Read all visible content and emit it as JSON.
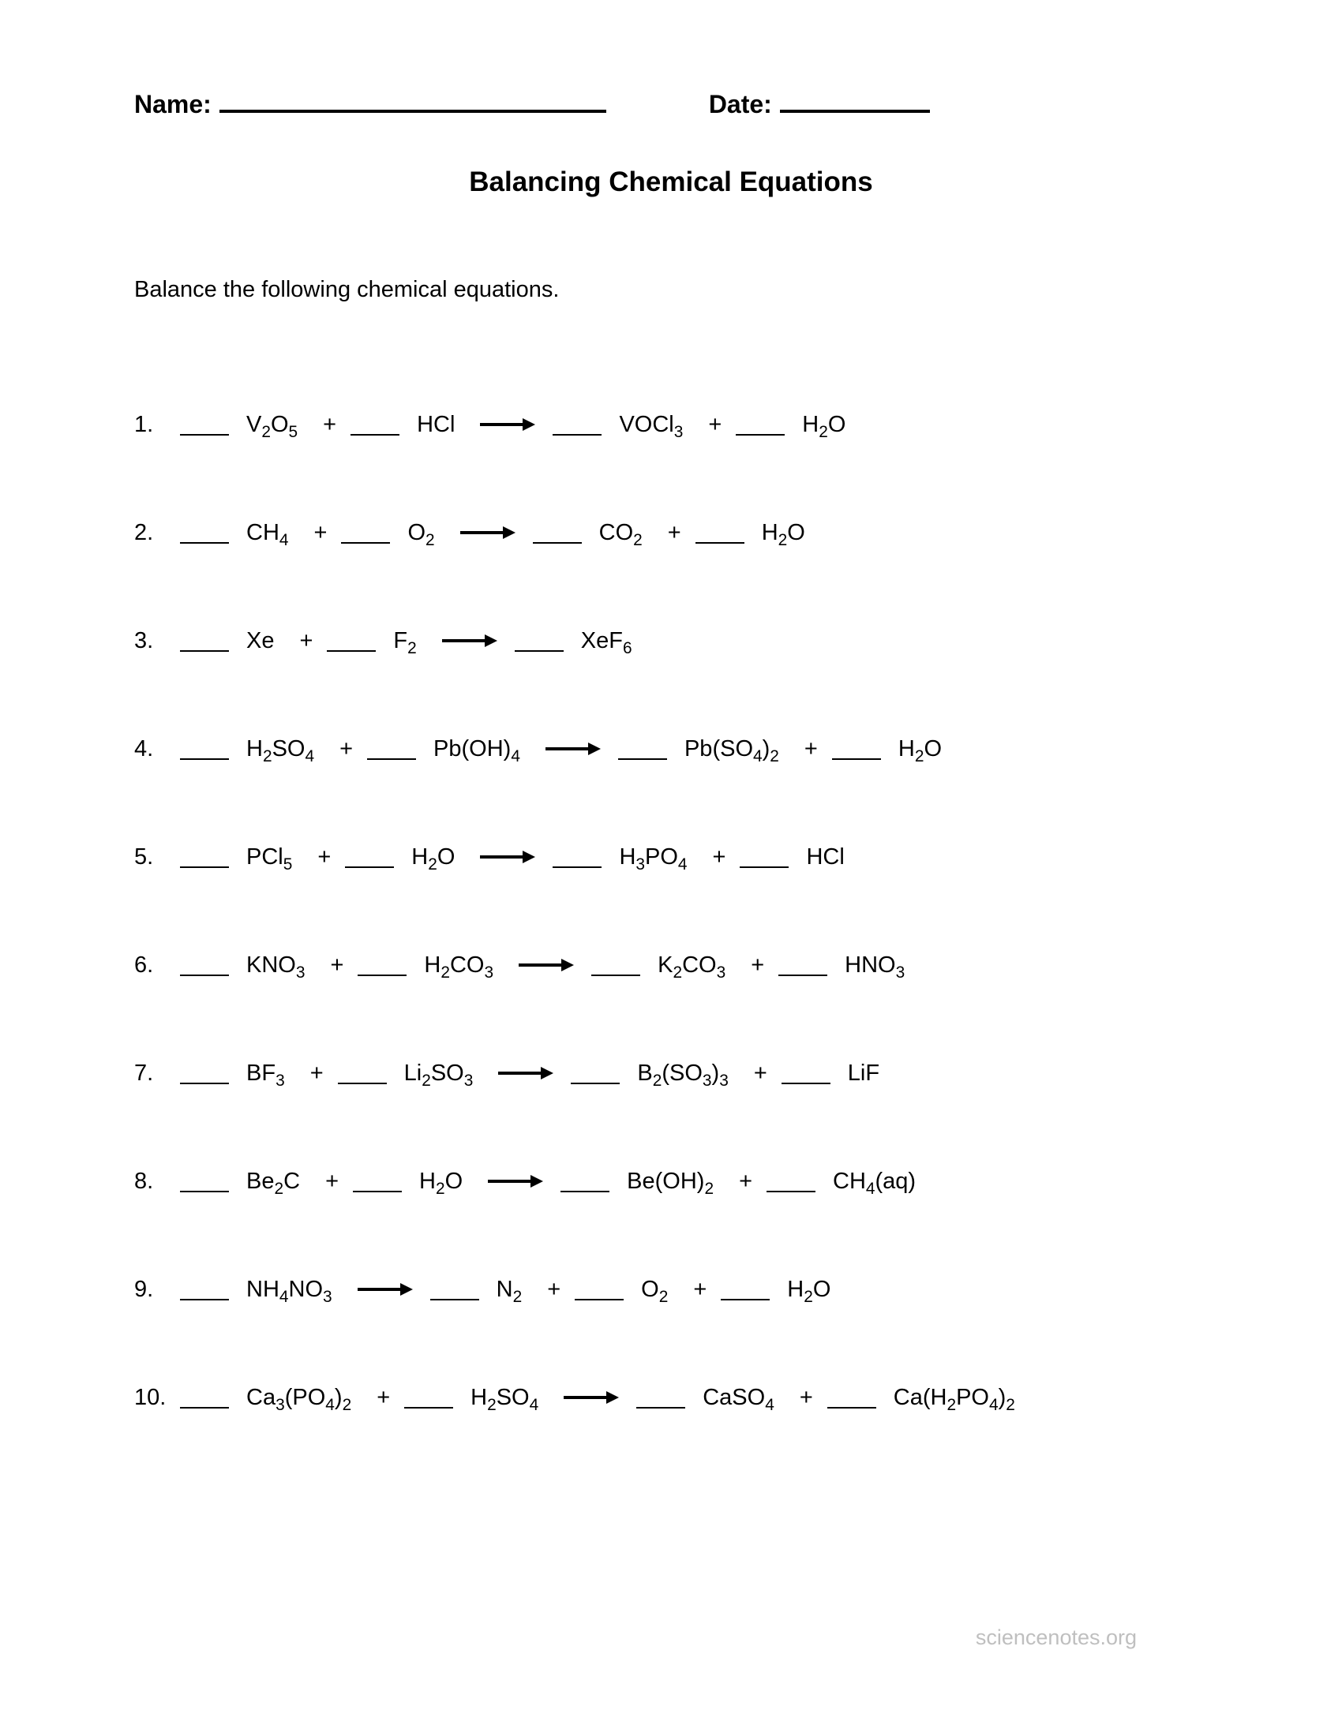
{
  "header": {
    "name_label": "Name:",
    "date_label": "Date:"
  },
  "title": "Balancing Chemical Equations",
  "instructions": "Balance the following chemical equations.",
  "footer": "sciencenotes.org",
  "style": {
    "text_color": "#000000",
    "background_color": "#ffffff",
    "footer_color": "#bfbfbf",
    "underline_thickness_header": 4,
    "underline_thickness_blank": 2,
    "title_fontsize": 35,
    "body_fontsize": 29,
    "header_fontsize": 32,
    "font_family": "Verdana",
    "arrow": {
      "length": 70,
      "stroke_width": 4,
      "color": "#000000"
    }
  },
  "equations": [
    {
      "num": "1.",
      "terms": [
        "blank",
        "V<sub>2</sub>O<sub>5</sub>",
        "plus",
        "blank",
        "HCl",
        "arrow",
        "blank",
        "VOCl<sub>3</sub>",
        "plus",
        "blank",
        "H<sub>2</sub>O"
      ]
    },
    {
      "num": "2.",
      "terms": [
        "blank",
        "CH<sub>4</sub>",
        "plus",
        "blank",
        "O<sub>2</sub>",
        "arrow",
        "blank",
        "CO<sub>2</sub>",
        "plus",
        "blank",
        "H<sub>2</sub>O"
      ]
    },
    {
      "num": "3.",
      "terms": [
        "blank",
        "Xe",
        "plus",
        "blank",
        "F<sub>2</sub>",
        "arrow",
        "blank",
        "XeF<sub>6</sub>"
      ]
    },
    {
      "num": "4.",
      "terms": [
        "blank",
        "H<sub>2</sub>SO<sub>4</sub>",
        "plus",
        "blank",
        "Pb(OH)<sub>4</sub>",
        "arrow",
        "blank",
        "Pb(SO<sub>4</sub>)<sub>2</sub>",
        "plus",
        "blank",
        "H<sub>2</sub>O"
      ]
    },
    {
      "num": "5.",
      "terms": [
        "blank",
        "PCl<sub>5</sub>",
        "plus",
        "blank",
        "H<sub>2</sub>O",
        "arrow",
        "blank",
        "H<sub>3</sub>PO<sub>4</sub>",
        "plus",
        "blank",
        "HCl"
      ]
    },
    {
      "num": "6.",
      "terms": [
        "blank",
        "KNO<sub>3</sub>",
        "plus",
        "blank",
        "H<sub>2</sub>CO<sub>3</sub>",
        "arrow",
        "blank",
        "K<sub>2</sub>CO<sub>3</sub>",
        "plus",
        "blank",
        "HNO<sub>3</sub>"
      ]
    },
    {
      "num": "7.",
      "terms": [
        "blank",
        "BF<sub>3</sub>",
        "plus",
        "blank",
        "Li<sub>2</sub>SO<sub>3</sub>",
        "arrow",
        "blank",
        "B<sub>2</sub>(SO<sub>3</sub>)<sub>3</sub>",
        "plus",
        "blank",
        "LiF"
      ]
    },
    {
      "num": "8.",
      "terms": [
        "blank",
        "Be<sub>2</sub>C",
        "plus",
        "blank",
        "H<sub>2</sub>O",
        "arrow",
        "blank",
        "Be(OH)<sub>2</sub>",
        "plus",
        "blank",
        "CH<sub>4</sub>(aq)"
      ]
    },
    {
      "num": "9.",
      "terms": [
        "blank",
        "NH<sub>4</sub>NO<sub>3</sub>",
        "arrow",
        "blank",
        "N<sub>2</sub>",
        "plus",
        "blank",
        "O<sub>2</sub>",
        "plus",
        "blank",
        "H<sub>2</sub>O"
      ]
    },
    {
      "num": "10.",
      "terms": [
        "blank",
        "Ca<sub>3</sub>(PO<sub>4</sub>)<sub>2</sub>",
        "plus",
        "blank",
        "H<sub>2</sub>SO<sub>4</sub>",
        "arrow",
        "blank",
        "CaSO<sub>4</sub>",
        "plus",
        "blank",
        "Ca(H<sub>2</sub>PO<sub>4</sub>)<sub>2</sub>"
      ]
    }
  ]
}
